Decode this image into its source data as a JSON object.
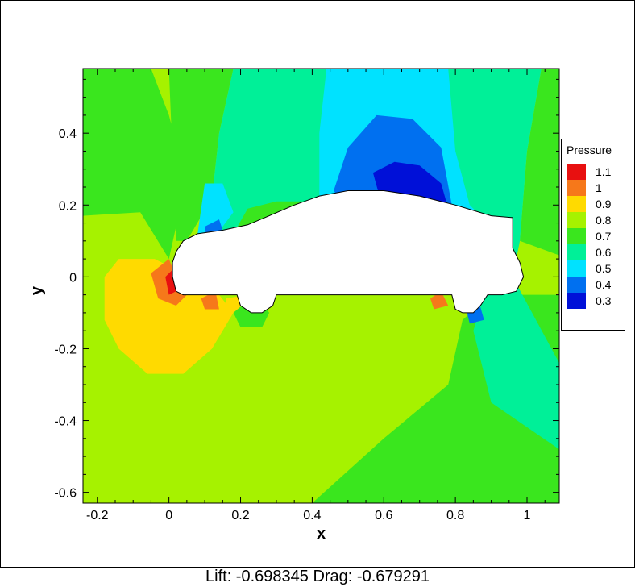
{
  "caption": "Lift: -0.698345 Drag: -0.679291",
  "chart_data": {
    "type": "contour",
    "xlabel": "x",
    "ylabel": "y",
    "xlim": [
      -0.24,
      1.09
    ],
    "ylim": [
      -0.63,
      0.58
    ],
    "x_ticks": [
      -0.2,
      0,
      0.2,
      0.4,
      0.6,
      0.8,
      1
    ],
    "x_tick_labels": [
      "-0.2",
      "0",
      "0.2",
      "0.4",
      "0.6",
      "0.8",
      "1"
    ],
    "y_ticks": [
      -0.6,
      -0.4,
      -0.2,
      0,
      0.2,
      0.4
    ],
    "y_tick_labels": [
      "-0.6",
      "-0.4",
      "-0.2",
      "0",
      "0.2",
      "0.4"
    ],
    "legend": {
      "title": "Pressure",
      "position": "right",
      "levels": [
        {
          "label": "1.1",
          "color": "#e81010"
        },
        {
          "label": "1",
          "color": "#f6781a"
        },
        {
          "label": "0.9",
          "color": "#ffda00"
        },
        {
          "label": "0.8",
          "color": "#a6f200"
        },
        {
          "label": "0.7",
          "color": "#3ae61e"
        },
        {
          "label": "0.6",
          "color": "#00f098"
        },
        {
          "label": "0.5",
          "color": "#00e2ff"
        },
        {
          "label": "0.4",
          "color": "#0070f0"
        },
        {
          "label": "0.3",
          "color": "#0010d8"
        }
      ]
    },
    "background_level": "0.8",
    "regions": [
      {
        "level": "0.7",
        "points": [
          [
            -0.24,
            0.58
          ],
          [
            -0.05,
            0.58
          ],
          [
            0.0,
            0.45
          ],
          [
            0.04,
            0.3
          ],
          [
            0.02,
            0.14
          ],
          [
            0.0,
            0.05
          ],
          [
            -0.08,
            0.18
          ],
          [
            -0.24,
            0.17
          ]
        ]
      },
      {
        "level": "0.7",
        "points": [
          [
            0.0,
            0.58
          ],
          [
            0.18,
            0.58
          ],
          [
            0.14,
            0.4
          ],
          [
            0.12,
            0.22
          ],
          [
            0.05,
            0.1
          ],
          [
            0.02,
            0.1
          ]
        ]
      },
      {
        "level": "0.7",
        "points": [
          [
            1.09,
            0.58
          ],
          [
            1.04,
            0.58
          ],
          [
            1.0,
            0.35
          ],
          [
            0.98,
            0.1
          ],
          [
            1.09,
            0.06
          ]
        ]
      },
      {
        "level": "0.7",
        "points": [
          [
            0.9,
            -0.05
          ],
          [
            1.09,
            -0.05
          ],
          [
            1.09,
            -0.63
          ],
          [
            0.4,
            -0.63
          ],
          [
            0.6,
            -0.45
          ],
          [
            0.78,
            -0.3
          ],
          [
            0.82,
            -0.12
          ]
        ]
      },
      {
        "level": "0.6",
        "points": [
          [
            0.18,
            0.58
          ],
          [
            1.04,
            0.58
          ],
          [
            1.0,
            0.35
          ],
          [
            0.98,
            0.1
          ],
          [
            0.96,
            0.0
          ],
          [
            1.09,
            -0.24
          ],
          [
            1.09,
            -0.48
          ],
          [
            0.9,
            -0.35
          ],
          [
            0.85,
            -0.15
          ],
          [
            0.88,
            -0.05
          ],
          [
            0.6,
            0.05
          ],
          [
            0.15,
            0.05
          ],
          [
            0.12,
            0.22
          ],
          [
            0.14,
            0.4
          ]
        ]
      },
      {
        "level": "0.7",
        "points": [
          [
            0.18,
            0.12
          ],
          [
            0.22,
            0.19
          ],
          [
            0.3,
            0.21
          ],
          [
            0.38,
            0.21
          ],
          [
            0.4,
            0.12
          ],
          [
            0.3,
            0.08
          ]
        ]
      },
      {
        "level": "0.5",
        "points": [
          [
            0.44,
            0.58
          ],
          [
            0.78,
            0.58
          ],
          [
            0.8,
            0.35
          ],
          [
            0.84,
            0.2
          ],
          [
            0.9,
            0.14
          ],
          [
            0.85,
            0.06
          ],
          [
            0.5,
            0.06
          ],
          [
            0.42,
            0.2
          ],
          [
            0.42,
            0.4
          ]
        ]
      },
      {
        "level": "0.5",
        "points": [
          [
            0.1,
            0.26
          ],
          [
            0.15,
            0.26
          ],
          [
            0.18,
            0.18
          ],
          [
            0.12,
            0.1
          ],
          [
            0.08,
            0.12
          ]
        ]
      },
      {
        "level": "0.4",
        "points": [
          [
            0.5,
            0.36
          ],
          [
            0.58,
            0.45
          ],
          [
            0.68,
            0.44
          ],
          [
            0.76,
            0.36
          ],
          [
            0.79,
            0.2
          ],
          [
            0.7,
            0.14
          ],
          [
            0.52,
            0.16
          ],
          [
            0.46,
            0.24
          ]
        ]
      },
      {
        "level": "0.4",
        "points": [
          [
            0.1,
            0.14
          ],
          [
            0.14,
            0.16
          ],
          [
            0.16,
            0.1
          ],
          [
            0.11,
            0.08
          ]
        ]
      },
      {
        "level": "0.3",
        "points": [
          [
            0.57,
            0.29
          ],
          [
            0.63,
            0.32
          ],
          [
            0.7,
            0.31
          ],
          [
            0.76,
            0.26
          ],
          [
            0.78,
            0.19
          ],
          [
            0.6,
            0.18
          ]
        ]
      },
      {
        "level": "0.9",
        "points": [
          [
            -0.18,
            0.0
          ],
          [
            -0.14,
            0.05
          ],
          [
            -0.04,
            0.05
          ],
          [
            0.02,
            0.02
          ],
          [
            0.06,
            -0.04
          ],
          [
            0.14,
            -0.05
          ],
          [
            0.18,
            -0.1
          ],
          [
            0.12,
            -0.2
          ],
          [
            0.04,
            -0.27
          ],
          [
            -0.06,
            -0.27
          ],
          [
            -0.14,
            -0.2
          ],
          [
            -0.18,
            -0.12
          ]
        ]
      },
      {
        "level": "1",
        "points": [
          [
            -0.05,
            0.01
          ],
          [
            0.0,
            0.05
          ],
          [
            0.02,
            0.0
          ],
          [
            0.05,
            -0.05
          ],
          [
            0.02,
            -0.08
          ],
          [
            -0.03,
            -0.06
          ]
        ]
      },
      {
        "level": "1.1",
        "points": [
          [
            -0.01,
            0.0
          ],
          [
            0.01,
            0.02
          ],
          [
            0.02,
            -0.04
          ],
          [
            0.0,
            -0.05
          ]
        ]
      },
      {
        "level": "1",
        "points": [
          [
            0.09,
            -0.06
          ],
          [
            0.13,
            -0.04
          ],
          [
            0.14,
            -0.09
          ],
          [
            0.1,
            -0.09
          ]
        ]
      },
      {
        "level": "0.9",
        "points": [
          [
            0.16,
            -0.06
          ],
          [
            0.22,
            -0.05
          ],
          [
            0.22,
            -0.1
          ],
          [
            0.16,
            -0.1
          ]
        ]
      },
      {
        "level": "0.7",
        "points": [
          [
            0.18,
            -0.1
          ],
          [
            0.24,
            -0.05
          ],
          [
            0.28,
            -0.1
          ],
          [
            0.26,
            -0.14
          ],
          [
            0.2,
            -0.14
          ]
        ]
      },
      {
        "level": "1",
        "points": [
          [
            0.73,
            -0.06
          ],
          [
            0.76,
            -0.04
          ],
          [
            0.78,
            -0.08
          ],
          [
            0.74,
            -0.09
          ]
        ]
      },
      {
        "level": "0.4",
        "points": [
          [
            0.82,
            -0.05
          ],
          [
            0.86,
            -0.05
          ],
          [
            0.88,
            -0.12
          ],
          [
            0.84,
            -0.13
          ]
        ]
      }
    ],
    "car_outline": [
      [
        0.02,
        0.07
      ],
      [
        0.04,
        0.1
      ],
      [
        0.08,
        0.12
      ],
      [
        0.15,
        0.13
      ],
      [
        0.22,
        0.145
      ],
      [
        0.28,
        0.17
      ],
      [
        0.35,
        0.2
      ],
      [
        0.42,
        0.225
      ],
      [
        0.5,
        0.24
      ],
      [
        0.6,
        0.24
      ],
      [
        0.7,
        0.225
      ],
      [
        0.8,
        0.2
      ],
      [
        0.9,
        0.17
      ],
      [
        0.96,
        0.165
      ],
      [
        0.96,
        0.08
      ],
      [
        0.98,
        0.04
      ],
      [
        0.99,
        0.0
      ],
      [
        0.97,
        -0.04
      ],
      [
        0.93,
        -0.05
      ],
      [
        0.89,
        -0.05
      ],
      [
        0.87,
        -0.08
      ],
      [
        0.85,
        -0.1
      ],
      [
        0.82,
        -0.1
      ],
      [
        0.8,
        -0.09
      ],
      [
        0.79,
        -0.05
      ],
      [
        0.3,
        -0.05
      ],
      [
        0.29,
        -0.08
      ],
      [
        0.26,
        -0.1
      ],
      [
        0.23,
        -0.1
      ],
      [
        0.2,
        -0.08
      ],
      [
        0.19,
        -0.05
      ],
      [
        0.04,
        -0.05
      ],
      [
        0.02,
        -0.04
      ],
      [
        0.01,
        0.0
      ],
      [
        0.01,
        0.04
      ]
    ]
  }
}
